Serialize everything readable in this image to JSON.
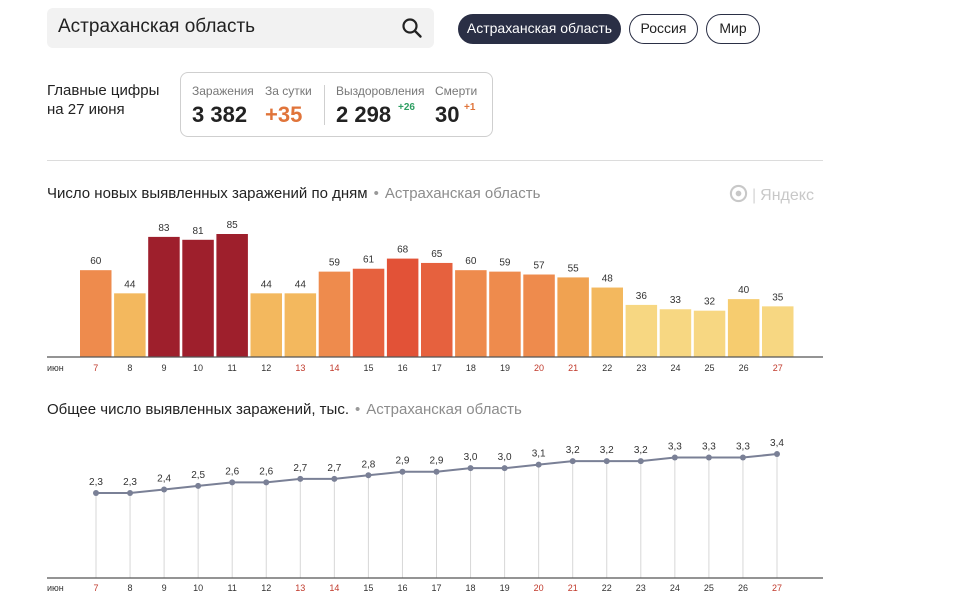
{
  "search": {
    "query": "Астраханская область"
  },
  "tabs": [
    {
      "label": "Астраханская область",
      "active": true
    },
    {
      "label": "Россия",
      "active": false
    },
    {
      "label": "Мир",
      "active": false
    }
  ],
  "summary": {
    "title_line1": "Главные цифры",
    "title_line2": "на 27 июня",
    "infections_caption": "Заражения",
    "infections_value": "3 382",
    "per_day_caption": "За сутки",
    "per_day_value": "+35",
    "recovered_caption": "Выздоровления",
    "recovered_value": "2 298",
    "recovered_delta": "+26",
    "deaths_caption": "Смерти",
    "deaths_value": "30",
    "deaths_delta": "+1"
  },
  "colors": {
    "accent_dark": "#2a2f45",
    "orange": "#e0743a",
    "green": "#2e9e62",
    "weekend": "#c0392b"
  },
  "logo": {
    "text": "Яндекс"
  },
  "chart_data": [
    {
      "type": "bar",
      "title": "Число новых выявленных заражений по дням",
      "subtitle": "Астраханская область",
      "month_label": "июн",
      "categories": [
        "7",
        "8",
        "9",
        "10",
        "11",
        "12",
        "13",
        "14",
        "15",
        "16",
        "17",
        "18",
        "19",
        "20",
        "21",
        "22",
        "23",
        "24",
        "25",
        "26",
        "27"
      ],
      "weekend_days": [
        "7",
        "13",
        "14",
        "20",
        "21",
        "27"
      ],
      "values": [
        60,
        44,
        83,
        81,
        85,
        44,
        44,
        59,
        61,
        68,
        65,
        60,
        59,
        57,
        55,
        48,
        36,
        33,
        32,
        40,
        35
      ],
      "bar_colors": [
        "#ee8b4d",
        "#f3b85e",
        "#9e1f2c",
        "#9e1f2c",
        "#9e1f2c",
        "#f3b85e",
        "#f3b85e",
        "#ee8b4d",
        "#e6613e",
        "#e25237",
        "#e6613e",
        "#ee8b4d",
        "#ee8b4d",
        "#ee8b4d",
        "#f0a251",
        "#f3b85e",
        "#f7d782",
        "#f7d782",
        "#f7d782",
        "#f6cc6f",
        "#f7d782"
      ],
      "ylim": [
        0,
        85
      ]
    },
    {
      "type": "line",
      "title": "Общее число выявленных заражений, тыс.",
      "subtitle": "Астраханская область",
      "month_label": "июн",
      "categories": [
        "7",
        "8",
        "9",
        "10",
        "11",
        "12",
        "13",
        "14",
        "15",
        "16",
        "17",
        "18",
        "19",
        "20",
        "21",
        "22",
        "23",
        "24",
        "25",
        "26",
        "27"
      ],
      "weekend_days": [
        "7",
        "13",
        "14",
        "20",
        "21",
        "27"
      ],
      "values": [
        2.3,
        2.3,
        2.4,
        2.5,
        2.6,
        2.6,
        2.7,
        2.7,
        2.8,
        2.9,
        2.9,
        3.0,
        3.0,
        3.1,
        3.2,
        3.2,
        3.2,
        3.3,
        3.3,
        3.3,
        3.4
      ],
      "value_labels": [
        "2,3",
        "2,3",
        "2,4",
        "2,5",
        "2,6",
        "2,6",
        "2,7",
        "2,7",
        "2,8",
        "2,9",
        "2,9",
        "3,0",
        "3,0",
        "3,1",
        "3,2",
        "3,2",
        "3,2",
        "3,3",
        "3,3",
        "3,3",
        "3,4"
      ],
      "ylim": [
        0,
        3.4
      ]
    }
  ]
}
